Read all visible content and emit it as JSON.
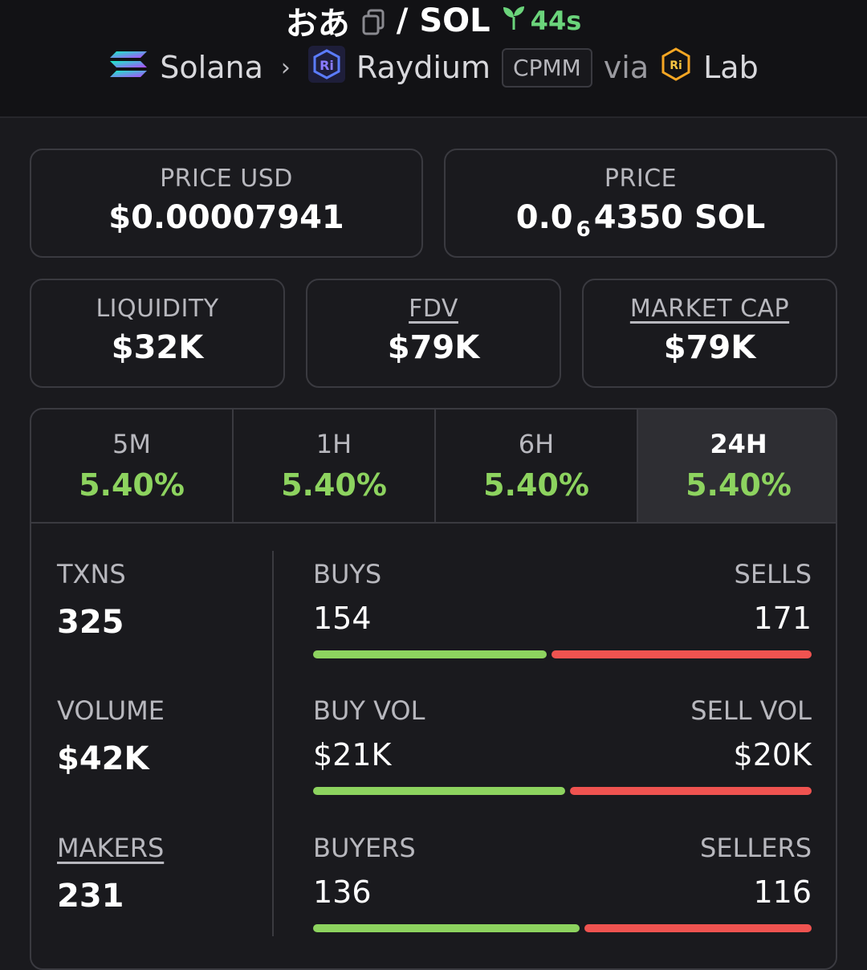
{
  "header": {
    "token": "おあ",
    "pair_sep": "/",
    "quote": "SOL",
    "age": "44s",
    "chain": "Solana",
    "dex": "Raydium",
    "pool_type": "CPMM",
    "via": "via",
    "launchpad": "Lab"
  },
  "prices": {
    "usd_label": "PRICE USD",
    "usd_value": "$0.00007941",
    "native_label": "PRICE",
    "native_prefix": "0.0",
    "native_zeros": "6",
    "native_suffix": "4350 SOL"
  },
  "metrics": [
    {
      "label": "LIQUIDITY",
      "value": "$32K"
    },
    {
      "label": "FDV",
      "value": "$79K"
    },
    {
      "label": "MARKET CAP",
      "value": "$79K"
    }
  ],
  "tabs": [
    {
      "label": "5M",
      "value": "5.40%"
    },
    {
      "label": "1H",
      "value": "5.40%"
    },
    {
      "label": "6H",
      "value": "5.40%"
    },
    {
      "label": "24H",
      "value": "5.40%"
    }
  ],
  "active_tab": "24H",
  "stats": {
    "txns": {
      "label": "TXNS",
      "value": "325"
    },
    "volume": {
      "label": "VOLUME",
      "value": "$42K"
    },
    "makers": {
      "label": "MAKERS",
      "value": "231"
    }
  },
  "splits": {
    "txns": {
      "left_label": "BUYS",
      "left_value": "154",
      "right_label": "SELLS",
      "right_value": "171",
      "buy_fraction": 0.474
    },
    "volume": {
      "left_label": "BUY VOL",
      "left_value": "$21K",
      "right_label": "SELL VOL",
      "right_value": "$20K",
      "buy_fraction": 0.51
    },
    "makers": {
      "left_label": "BUYERS",
      "left_value": "136",
      "right_label": "SELLERS",
      "right_value": "116",
      "buy_fraction": 0.54
    }
  },
  "colors": {
    "buy": "#8dd35f",
    "sell": "#ef5350",
    "age": "#6bd47b",
    "background": "#1a1a1e"
  }
}
